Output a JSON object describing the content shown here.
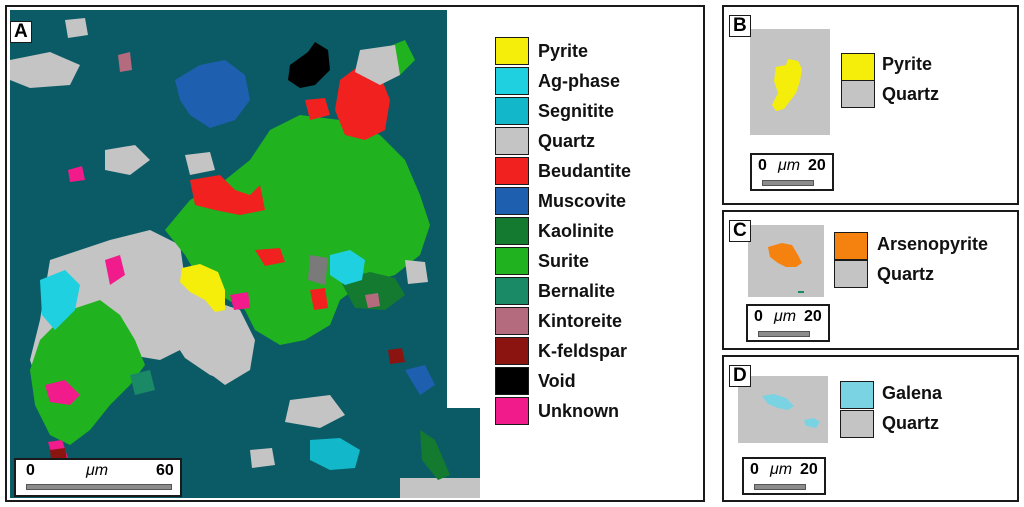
{
  "panels": {
    "A": {
      "label": "A",
      "legend": [
        {
          "name": "Pyrite",
          "color": "#f4ee0a"
        },
        {
          "name": "Ag-phase",
          "color": "#1fd0e0"
        },
        {
          "name": "Segnitite",
          "color": "#12b8c9"
        },
        {
          "name": "Quartz",
          "color": "#c4c4c4"
        },
        {
          "name": "Beudantite",
          "color": "#f0211f"
        },
        {
          "name": "Muscovite",
          "color": "#1f5faf"
        },
        {
          "name": "Kaolinite",
          "color": "#137a30"
        },
        {
          "name": "Surite",
          "color": "#20b21f"
        },
        {
          "name": "Bernalite",
          "color": "#1a8a66"
        },
        {
          "name": "Kintoreite",
          "color": "#b56b7e"
        },
        {
          "name": "K-feldspar",
          "color": "#8b1410"
        },
        {
          "name": "Void",
          "color": "#000000"
        },
        {
          "name": "Unknown",
          "color": "#f11b8c"
        }
      ],
      "scalebar": {
        "start": "0",
        "unit": "μm",
        "end": "60"
      },
      "background_color": "#0b5b66"
    },
    "B": {
      "label": "B",
      "legend": [
        {
          "name": "Pyrite",
          "color": "#f4ee0a"
        },
        {
          "name": "Quartz",
          "color": "#c4c4c4"
        }
      ],
      "scalebar": {
        "start": "0",
        "unit": "μm",
        "end": "20"
      }
    },
    "C": {
      "label": "C",
      "legend": [
        {
          "name": "Arsenopyrite",
          "color": "#f5820e"
        },
        {
          "name": "Quartz",
          "color": "#c4c4c4"
        }
      ],
      "scalebar": {
        "start": "0",
        "unit": "μm",
        "end": "20"
      }
    },
    "D": {
      "label": "D",
      "legend": [
        {
          "name": "Galena",
          "color": "#7ad3e3"
        },
        {
          "name": "Quartz",
          "color": "#c4c4c4"
        }
      ],
      "scalebar": {
        "start": "0",
        "unit": "μm",
        "end": "20"
      }
    }
  }
}
